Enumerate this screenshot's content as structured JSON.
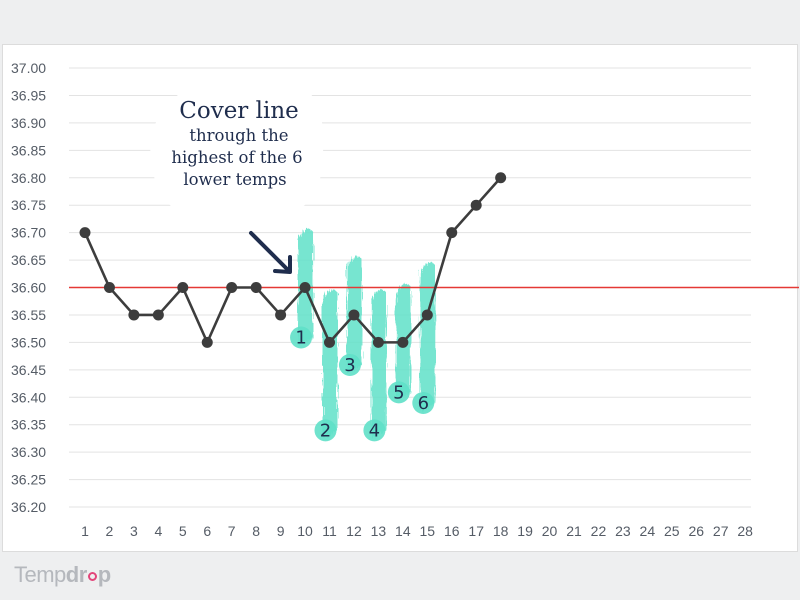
{
  "chart_data": {
    "type": "line",
    "x": [
      1,
      2,
      3,
      4,
      5,
      6,
      7,
      8,
      9,
      10,
      11,
      12,
      13,
      14,
      15,
      16,
      17,
      18
    ],
    "values": [
      36.7,
      36.6,
      36.55,
      36.55,
      36.6,
      36.5,
      36.6,
      36.6,
      36.55,
      36.6,
      36.5,
      36.55,
      36.5,
      36.5,
      36.55,
      36.7,
      36.75,
      36.8
    ],
    "x_ticks": [
      "1",
      "2",
      "3",
      "4",
      "5",
      "6",
      "7",
      "8",
      "9",
      "10",
      "11",
      "12",
      "13",
      "14",
      "15",
      "16",
      "17",
      "18",
      "19",
      "20",
      "21",
      "22",
      "23",
      "24",
      "25",
      "26",
      "27",
      "28"
    ],
    "y_ticks": [
      "37.00",
      "36.95",
      "36.90",
      "36.85",
      "36.80",
      "36.75",
      "36.70",
      "36.65",
      "36.60",
      "36.55",
      "36.50",
      "36.45",
      "36.40",
      "36.35",
      "36.30",
      "36.25",
      "36.20"
    ],
    "ylim": [
      36.2,
      37.0
    ],
    "xlim": [
      1,
      28
    ],
    "grid": true,
    "cover_line": 36.6,
    "highlight_days": [
      10,
      11,
      12,
      13,
      14,
      15
    ],
    "highlight_labels": [
      "1",
      "2",
      "3",
      "4",
      "5",
      "6"
    ],
    "title": "",
    "xlabel": "",
    "ylabel": ""
  },
  "annotation": {
    "title": "Cover line",
    "lines": [
      "through the",
      "highest of the 6",
      "lower temps"
    ]
  },
  "logo": {
    "part1": "Temp",
    "part2": "dr",
    "part3": "p"
  },
  "colors": {
    "line": "#3d3d3d",
    "cover_line": "#e53935",
    "highlight": "#5fe0c8",
    "arrow": "#1f2d4d",
    "logo_accent": "#e2457a"
  }
}
